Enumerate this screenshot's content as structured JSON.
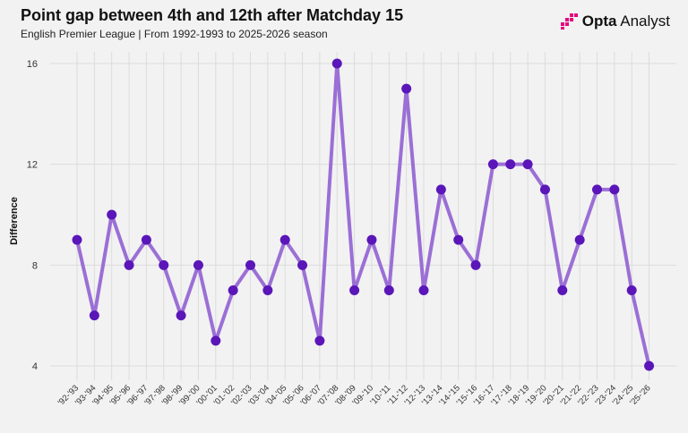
{
  "header": {
    "title": "Point gap between 4th and 12th after Matchday 15",
    "subtitle": "English Premier League | From 1992-1993 to 2025-2026 season"
  },
  "brand": {
    "name_bold": "Opta",
    "name_rest": " Analyst",
    "icon": "opta-logo-icon",
    "color": "#e6007e"
  },
  "colors": {
    "line": "#9b6fd6",
    "marker": "#5a16b8",
    "grid": "#dcdcdc",
    "background": "#f2f2f2"
  },
  "chart_data": {
    "type": "line",
    "title": "Point gap between 4th and 12th after Matchday 15",
    "subtitle": "English Premier League | From 1992-1993 to 2025-2026 season",
    "xlabel": "",
    "ylabel": "Difference",
    "ylim": [
      4,
      16
    ],
    "yticks": [
      4,
      8,
      12,
      16
    ],
    "grid": true,
    "legend": "none",
    "categories": [
      "'92-'93",
      "'93-'94",
      "'94-'95",
      "'95-'96",
      "'96-'97",
      "'97-'98",
      "'98-'99",
      "'99-'00",
      "'00-'01",
      "'01-'02",
      "'02-'03",
      "'03-'04",
      "'04-'05",
      "'05-'06",
      "'06-'07",
      "'07-'08",
      "'08-'09",
      "'09-'10",
      "'10-'11",
      "'11-'12",
      "'12-'13",
      "'13-'14",
      "'14-'15",
      "'15-'16",
      "'16-'17",
      "'17-'18",
      "'18-'19",
      "'19-'20",
      "'20-'21",
      "'21-'22",
      "'22-'23",
      "'23-'24",
      "'24-'25",
      "'25-'26"
    ],
    "values": [
      9,
      6,
      10,
      8,
      9,
      8,
      6,
      8,
      5,
      7,
      8,
      7,
      9,
      8,
      5,
      16,
      7,
      9,
      7,
      15,
      7,
      11,
      9,
      8,
      12,
      12,
      12,
      11,
      7,
      9,
      11,
      11,
      7,
      4
    ]
  }
}
